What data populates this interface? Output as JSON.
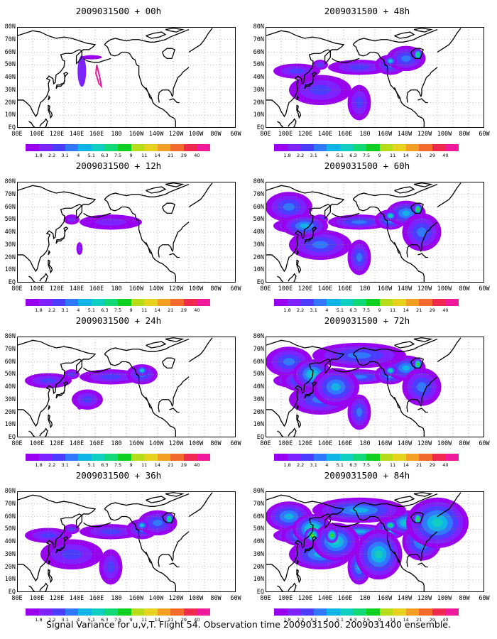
{
  "panels": [
    {
      "title": "2009031500 + 00h",
      "level": 0
    },
    {
      "title": "2009031500 + 48h",
      "level": 3
    },
    {
      "title": "2009031500 + 12h",
      "level": 1
    },
    {
      "title": "2009031500 + 60h",
      "level": 4
    },
    {
      "title": "2009031500 + 24h",
      "level": 2
    },
    {
      "title": "2009031500 + 72h",
      "level": 5
    },
    {
      "title": "2009031500 + 36h",
      "level": 3
    },
    {
      "title": "2009031500 + 84h",
      "level": 6
    }
  ],
  "y_labels": [
    "80N",
    "70N",
    "60N",
    "50N",
    "40N",
    "30N",
    "20N",
    "10N",
    "EQ"
  ],
  "x_labels": [
    "80E",
    "100E",
    "120E",
    "140E",
    "160E",
    "180",
    "160W",
    "140W",
    "120W",
    "100W",
    "80W",
    "60W"
  ],
  "colorbar": {
    "labels": [
      "1.8",
      "2.2",
      "3.1",
      "4",
      "5.1",
      "6.3",
      "7.5",
      "9",
      "11",
      "14",
      "21",
      "29",
      "40"
    ],
    "colors": [
      "#9a00f0",
      "#7d22ff",
      "#4b3cff",
      "#2f78ff",
      "#11b4e6",
      "#10cfc2",
      "#11d977",
      "#0fd020",
      "#b7dc19",
      "#e7d21d",
      "#f3a024",
      "#f26b2d",
      "#f02a4f",
      "#f0199c"
    ]
  },
  "caption": "Signal Variance for u,v,T. Flight 54. Observation time 2009031500. 2009031400 ensemble."
}
